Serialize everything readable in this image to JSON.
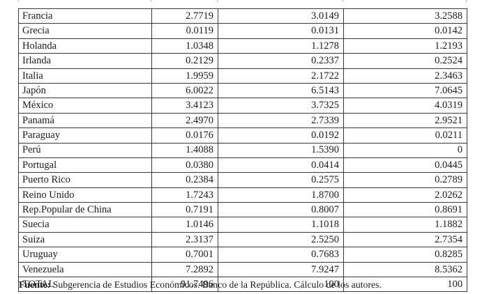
{
  "table": {
    "columns": [
      "country",
      "value_1",
      "value_2",
      "value_3"
    ],
    "rows": [
      {
        "label": "Francia",
        "values": [
          "2.7719",
          "3.0149",
          "3.2588"
        ]
      },
      {
        "label": "Grecia",
        "values": [
          "0.0119",
          "0.0131",
          "0.0142"
        ]
      },
      {
        "label": "Holanda",
        "values": [
          "1.0348",
          "1.1278",
          "1.2193"
        ]
      },
      {
        "label": "Irlanda",
        "values": [
          "0.2129",
          "0.2337",
          "0.2524"
        ]
      },
      {
        "label": "Italia",
        "values": [
          "1.9959",
          "2.1722",
          "2.3463"
        ]
      },
      {
        "label": "Japón",
        "values": [
          "6.0022",
          "6.5143",
          "7.0645"
        ]
      },
      {
        "label": "México",
        "values": [
          "3.4123",
          "3.7325",
          "4.0319"
        ]
      },
      {
        "label": "Panamá",
        "values": [
          "2.4970",
          "2.7339",
          "2.9521"
        ]
      },
      {
        "label": "Paraguay",
        "values": [
          "0.0176",
          "0.0192",
          "0.0211"
        ]
      },
      {
        "label": "Perú",
        "values": [
          "1.4088",
          "1.5390",
          "0"
        ]
      },
      {
        "label": "Portugal",
        "values": [
          "0.0380",
          "0.0414",
          "0.0445"
        ]
      },
      {
        "label": "Puerto Rico",
        "values": [
          "0.2384",
          "0.2575",
          "0.2789"
        ]
      },
      {
        "label": "Reino Unido",
        "values": [
          "1.7243",
          "1.8700",
          "2.0262"
        ]
      },
      {
        "label": "Rep.Popular de China",
        "values": [
          "0.7191",
          "0.8007",
          "0.8691"
        ]
      },
      {
        "label": "Suecia",
        "values": [
          "1.0146",
          "1.1018",
          "1.1882"
        ]
      },
      {
        "label": "Suiza",
        "values": [
          "2.3137",
          "2.5250",
          "2.7354"
        ]
      },
      {
        "label": "Uruguay",
        "values": [
          "0.7001",
          "0.7683",
          "0.8285"
        ]
      },
      {
        "label": "Venezuela",
        "values": [
          "7.2892",
          "7.9247",
          "8.5362"
        ]
      },
      {
        "label": "TOTAL",
        "values": [
          "91.7496",
          "100",
          "100"
        ]
      }
    ]
  },
  "footer": {
    "source_label": "Fuente:",
    "source_text": " Subgerencia de Estudios Económicos. Banco de la República. Cálculo de los autores."
  },
  "colors": {
    "background": "#ffffff",
    "border": "#3a3a3a",
    "text": "#1c1c1c"
  }
}
